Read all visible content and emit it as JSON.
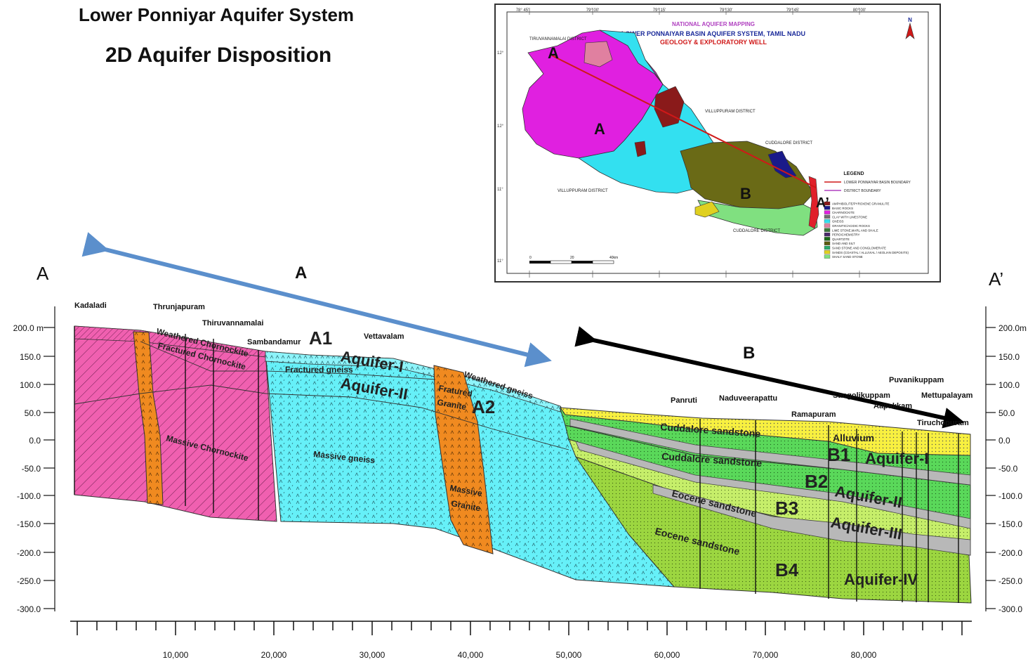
{
  "titles": {
    "line1": "Lower Ponniyar Aquifer System",
    "line2": "2D Aquifer Disposition"
  },
  "section_ends": {
    "left": "A",
    "right": "A’"
  },
  "zones": {
    "a": "A",
    "b": "B"
  },
  "villages": {
    "kadaladi": "Kadaladi",
    "thrunjapuram": "Thrunjapuram",
    "thiruvannamalai": "Thiruvannamalai",
    "sambandamur": "Sambandamur",
    "vettavalam": "Vettavalam",
    "panruti": "Panruti",
    "naduveerapattu": "Naduveerapattu",
    "ramapuram": "Ramapuram",
    "sangolikuppam": "Sangolikuppam",
    "puvanikuppam": "Puvanikuppam",
    "aapakkam": "Aapakkam",
    "mettupalayam": "Mettupalayam",
    "tiruchopuram": "Tiruchopuram"
  },
  "units": {
    "weathered_charnockite": "Weathered Chornockite",
    "fractured_charnockite": "Fractured Chornockite",
    "massive_charnockite": "Massive Chornockite",
    "fractured_gneiss": "Fractured gneiss",
    "massive_gneiss": "Massive gneiss",
    "weathered_gneiss": "Weathered gneiss",
    "fractured_granite_1": "Fratured",
    "fractured_granite_2": "Granite",
    "massive_granite_1": "Massive",
    "massive_granite_2": "Granite",
    "alluvium": "Alluvium",
    "cuddalore_1": "Cuddalore sandstone",
    "cuddalore_2": "Cuddalore sandstone",
    "eocene_1": "Eocene sandstone",
    "eocene_2": "Eocene sandstone"
  },
  "aquifer_labels": {
    "a1": "A1",
    "a2": "A2",
    "aq1_a": "Aquifer-I",
    "aq2_a": "Aquifer-II",
    "b1": "B1",
    "b2": "B2",
    "b3": "B3",
    "b4": "B4",
    "aq1_b": "Aquifer-I",
    "aq2_b": "Aquifer-II",
    "aq3_b": "Aquifer-III",
    "aq4_b": "Aquifer-IV"
  },
  "elevation_axis_left": [
    "200.0 m",
    "150.0",
    "100.0",
    "50.0",
    "0.0",
    "-50.0",
    "-100.0",
    "-150.0",
    "-200.0",
    "-250.0",
    "-300.0"
  ],
  "elevation_axis_right": [
    "200.0m",
    "150.0",
    "100.0",
    "50.0",
    "0.0",
    "-50.0",
    "-100.0",
    "-150.0",
    "-200.0",
    "-250.0",
    "-300.0"
  ],
  "distance_axis": [
    "10,000",
    "20,000",
    "30,000",
    "40,000",
    "50,000",
    "60,000",
    "70,000",
    "80,000"
  ],
  "map": {
    "header1": "NATIONAL AQUIFER MAPPING",
    "header2": "LOWER PONNAIYAR BASIN AQUIFER SYSTEM, TAMIL NADU",
    "header3": "GEOLOGY & EXPLORATORY WELL",
    "north": "N",
    "label_a": "A",
    "label_a2": "A",
    "label_b": "B",
    "label_aprime": "A’",
    "districts": {
      "tiruvannamalai": "TIRUVANNAMALAI DISTRICT",
      "villupuram_ne": "VILLUPPURAM DISTRICT",
      "villupuram_sw": "VILLUPPURAM DISTRICT",
      "cuddalore_e": "CUDDALORE DISTRICT",
      "cuddalore_s": "CUDDALORE DISTRICT"
    },
    "legend_title": "LEGEND",
    "legend_lines": [
      {
        "label": "LOWER PONNAIYAR BASIN BOUNDARY",
        "color": "#d01818"
      },
      {
        "label": "DISTRICT BOUNDARY",
        "color": "#b040c0"
      }
    ],
    "legend_items": [
      {
        "label": "AMPHIBOLITE/PYROXENE GRANULITE",
        "color": "#8a1a1a"
      },
      {
        "label": "BASIC ROCKS",
        "color": "#1a1a8a"
      },
      {
        "label": "CHARNOCKITE",
        "color": "#e020e0"
      },
      {
        "label": "CLAY WITH LIMESTONE",
        "color": "#707070"
      },
      {
        "label": "GNEISS",
        "color": "#33e0f0"
      },
      {
        "label": "GRANITIC/ACIDIC ROCKS",
        "color": "#e080a0"
      },
      {
        "label": "LIME STONE,MARL AND SHALE",
        "color": "#3a7a3a"
      },
      {
        "label": "PEROICHEMISTRY",
        "color": "#4a2a6a"
      },
      {
        "label": "QUARTZITE",
        "color": "#1a6a1a"
      },
      {
        "label": "SAND AND SILT",
        "color": "#5a5a10"
      },
      {
        "label": "SAND STONE AND CONGLOMERATE",
        "color": "#2aaa6a"
      },
      {
        "label": "SANDS (COASTAL / ALLUVIAL / AEOLIAN DEPOSITS)",
        "color": "#e0d020"
      },
      {
        "label": "SHALY SAND STONE",
        "color": "#80e080"
      }
    ],
    "scale_km": "40km",
    "scale_mid": "20",
    "scale_zero": "0",
    "lat_labels": [
      "12°",
      "12°",
      "11°",
      "11°"
    ],
    "lon_labels": [
      "78° 45'",
      "79° 00'",
      "79° 15'",
      "79° 30'",
      "79° 45'",
      "80° 00'"
    ]
  },
  "colors": {
    "charnockite": "#f060b0",
    "gneiss": "#66f0f8",
    "granite": "#f08a20",
    "alluvium": "#f8f040",
    "cuddalore": "#5ad85a",
    "clay": "#b8b8b8",
    "eocene_light": "#c6ee6a",
    "eocene_dark": "#9cd640",
    "arrow_blue": "#5b8fcc",
    "arrow_black": "#000000"
  }
}
